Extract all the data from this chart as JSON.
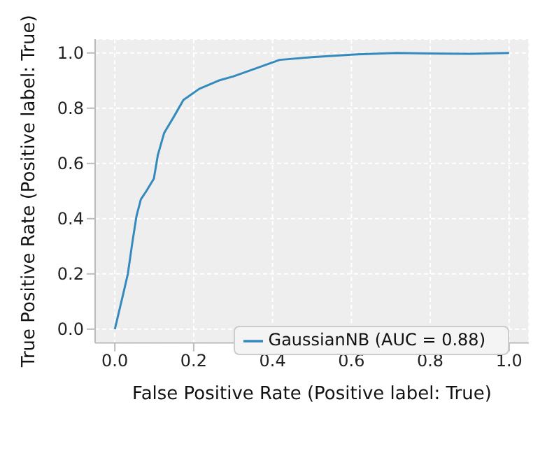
{
  "chart_data": {
    "type": "line",
    "xlabel": "False Positive Rate (Positive label: True)",
    "ylabel": "True Positive Rate (Positive label: True)",
    "xlim": [
      -0.05,
      1.05
    ],
    "ylim": [
      -0.05,
      1.05
    ],
    "xticks": [
      {
        "value": 0,
        "label": "0.0"
      },
      0.2,
      0.4,
      0.6,
      0.8,
      {
        "value": 1,
        "label": "1.0"
      }
    ],
    "yticks": [
      {
        "value": 0,
        "label": "0.0"
      },
      0.2,
      0.4,
      0.6,
      0.8,
      {
        "value": 1,
        "label": "1.0"
      }
    ],
    "grid": true,
    "legend": "bottom right",
    "marker": "none",
    "line_style": "solid",
    "series": [
      {
        "name": "GaussianNB (AUC = 0.88)",
        "color": "#348abd",
        "x": [
          0,
          0.01,
          0.02,
          0.033,
          0.044,
          0.055,
          0.066,
          0.08,
          0.099,
          0.109,
          0.125,
          0.15,
          0.174,
          0.214,
          0.263,
          0.3,
          0.35,
          0.418,
          0.5,
          0.615,
          0.714,
          0.8,
          0.9,
          1
        ],
        "values": [
          0,
          0.06,
          0.12,
          0.2,
          0.31,
          0.41,
          0.47,
          0.5,
          0.545,
          0.63,
          0.71,
          0.77,
          0.83,
          0.87,
          0.9,
          0.915,
          0.94,
          0.975,
          0.985,
          0.995,
          1,
          0.998,
          0.997,
          1
        ]
      }
    ]
  }
}
